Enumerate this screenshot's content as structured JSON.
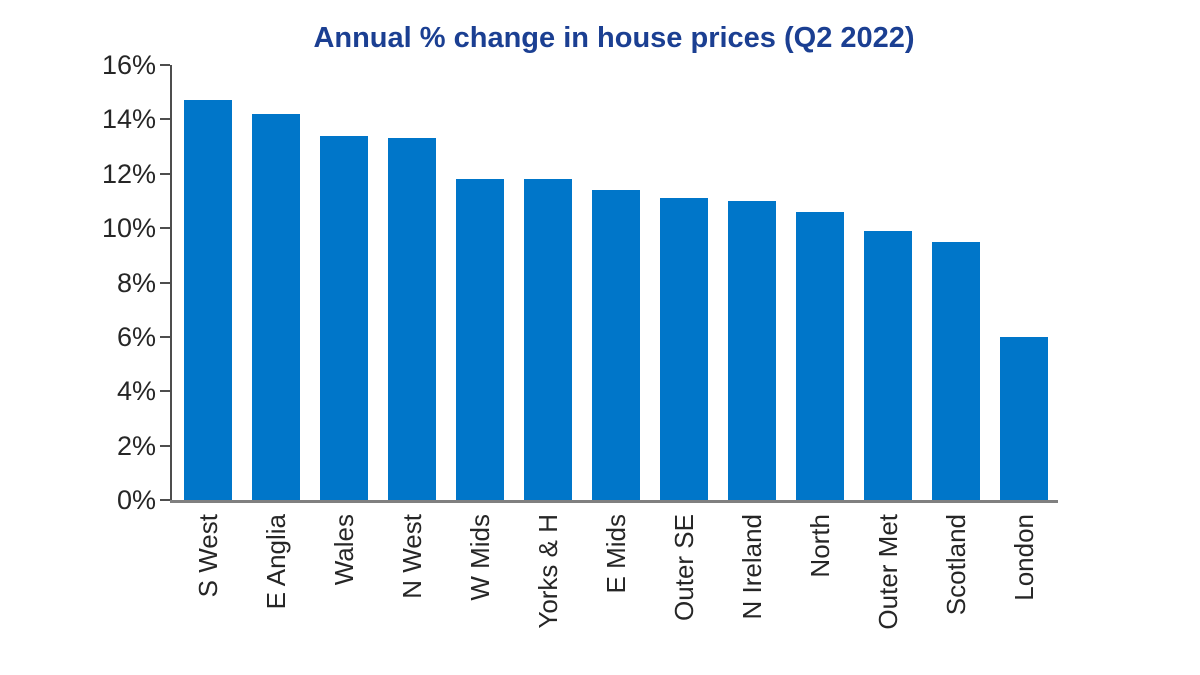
{
  "chart_data": {
    "type": "bar",
    "title": "Annual % change in house prices (Q2 2022)",
    "categories": [
      "S West",
      "E Anglia",
      "Wales",
      "N West",
      "W Mids",
      "Yorks & H",
      "E Mids",
      "Outer SE",
      "N Ireland",
      "North",
      "Outer Met",
      "Scotland",
      "London"
    ],
    "values": [
      14.7,
      14.2,
      13.4,
      13.3,
      11.8,
      11.8,
      11.4,
      11.1,
      11.0,
      10.6,
      9.9,
      9.5,
      6.0
    ],
    "xlabel": "",
    "ylabel": "",
    "ylim": [
      0,
      16
    ],
    "ytick_step": 2,
    "ytick_labels": [
      "0%",
      "2%",
      "4%",
      "6%",
      "8%",
      "10%",
      "12%",
      "14%",
      "16%"
    ],
    "grid": false,
    "legend": null,
    "colors": {
      "bar": "#0076C9",
      "title": "#1B3F92",
      "y_axis": "#4D4D4D",
      "x_axis": "#808080",
      "tick_text": "#262626"
    }
  }
}
